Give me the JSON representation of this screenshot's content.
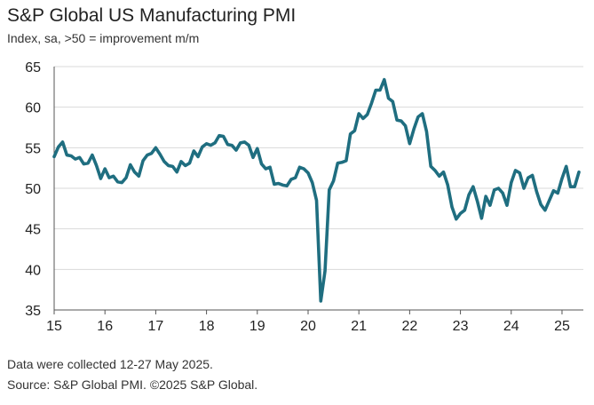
{
  "title": "S&P Global US Manufacturing PMI",
  "subtitle": "Index, sa, >50 = improvement m/m",
  "note_collected": "Data were collected 12-27 May 2025.",
  "note_source": "Source: S&P Global PMI. ©2025 S&P Global.",
  "colors": {
    "line": "#1f6e80",
    "grid": "#d9d9d9",
    "axis": "#555555"
  },
  "chart_data": {
    "type": "line",
    "title": "S&P Global US Manufacturing PMI",
    "ylabel": "Index, sa, >50 = improvement m/m",
    "xlabel": "",
    "ylim": [
      35,
      65
    ],
    "yticks": [
      35,
      40,
      45,
      50,
      55,
      60,
      65
    ],
    "xlim": [
      2015.0,
      2025.42
    ],
    "xticks": [
      {
        "x": 2015,
        "label": "15"
      },
      {
        "x": 2016,
        "label": "16"
      },
      {
        "x": 2017,
        "label": "17"
      },
      {
        "x": 2018,
        "label": "18"
      },
      {
        "x": 2019,
        "label": "19"
      },
      {
        "x": 2020,
        "label": "20"
      },
      {
        "x": 2021,
        "label": "21"
      },
      {
        "x": 2022,
        "label": "22"
      },
      {
        "x": 2023,
        "label": "23"
      },
      {
        "x": 2024,
        "label": "24"
      },
      {
        "x": 2025,
        "label": "25"
      }
    ],
    "grid": true,
    "series": [
      {
        "name": "US Manufacturing PMI",
        "start": 2015.0,
        "step": 0.08333,
        "values": [
          53.9,
          55.1,
          55.7,
          54.1,
          54.0,
          53.6,
          53.8,
          53.0,
          53.1,
          54.1,
          52.8,
          51.2,
          52.4,
          51.3,
          51.5,
          50.8,
          50.7,
          51.3,
          52.9,
          52.0,
          51.5,
          53.4,
          54.1,
          54.3,
          55.0,
          54.2,
          53.3,
          52.8,
          52.7,
          52.0,
          53.3,
          52.8,
          53.1,
          54.6,
          53.9,
          55.1,
          55.5,
          55.3,
          55.6,
          56.5,
          56.4,
          55.4,
          55.3,
          54.7,
          55.6,
          55.7,
          55.3,
          53.8,
          54.9,
          53.0,
          52.4,
          52.6,
          50.5,
          50.6,
          50.4,
          50.3,
          51.1,
          51.3,
          52.6,
          52.4,
          51.9,
          50.7,
          48.5,
          36.1,
          39.8,
          49.8,
          50.9,
          53.1,
          53.2,
          53.4,
          56.7,
          57.1,
          59.2,
          58.6,
          59.1,
          60.5,
          62.1,
          62.1,
          63.4,
          61.1,
          60.7,
          58.4,
          58.3,
          57.7,
          55.5,
          57.3,
          58.8,
          59.2,
          57.0,
          52.7,
          52.2,
          51.5,
          52.0,
          50.4,
          47.7,
          46.2,
          46.9,
          47.3,
          49.2,
          50.2,
          48.4,
          46.3,
          49.0,
          47.9,
          49.8,
          50.0,
          49.4,
          47.9,
          50.7,
          52.2,
          51.9,
          50.0,
          51.3,
          51.6,
          49.6,
          48.0,
          47.3,
          48.5,
          49.7,
          49.4,
          51.2,
          52.7,
          50.2,
          50.2,
          52.0
        ]
      }
    ]
  }
}
